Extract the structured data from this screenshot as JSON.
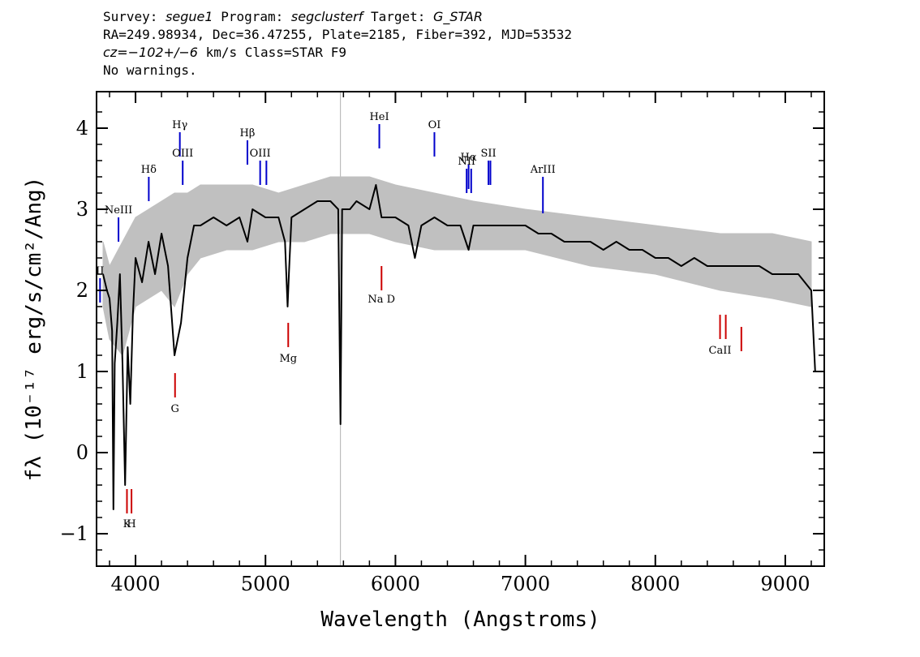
{
  "header": {
    "line1": {
      "survey_label": "Survey:",
      "survey": "segue1",
      "program_label": "Program:",
      "program": "segclusterf",
      "target_label": "Target:",
      "target": "G_STAR"
    },
    "line2": "RA=249.98934, Dec=36.47255, Plate=2185, Fiber=392, MJD=53532",
    "line3": {
      "cz": "cz=−102+/−6",
      "rest": " km/s Class=STAR F9"
    },
    "line4": "No warnings."
  },
  "chart_data": {
    "type": "line",
    "xlabel": "Wavelength (Angstroms)",
    "ylabel": "fλ (10⁻¹⁷ erg/s/cm²/Ang)",
    "xlim": [
      3700,
      9300
    ],
    "ylim": [
      -1.4,
      4.45
    ],
    "x_ticks": [
      4000,
      5000,
      6000,
      7000,
      8000,
      9000
    ],
    "x_tick_labels": [
      "4000",
      "5000",
      "6000",
      "7000",
      "8000",
      "9000"
    ],
    "y_ticks": [
      -1,
      0,
      1,
      2,
      3,
      4
    ],
    "y_tick_labels": [
      "−1",
      "0",
      "1",
      "2",
      "3",
      "4"
    ],
    "grid": false,
    "series": [
      {
        "color": "#000000",
        "x": [
          3750,
          3780,
          3800,
          3820,
          3830,
          3840,
          3860,
          3880,
          3900,
          3920,
          3940,
          3960,
          3980,
          4000,
          4050,
          4100,
          4150,
          4200,
          4250,
          4300,
          4350,
          4400,
          4450,
          4500,
          4600,
          4700,
          4800,
          4861,
          4900,
          5000,
          5100,
          5150,
          5170,
          5180,
          5200,
          5300,
          5400,
          5500,
          5560,
          5577,
          5590,
          5650,
          5700,
          5800,
          5850,
          5893,
          5900,
          6000,
          6100,
          6150,
          6200,
          6300,
          6400,
          6500,
          6563,
          6600,
          6700,
          6800,
          6900,
          7000,
          7100,
          7200,
          7300,
          7400,
          7500,
          7600,
          7700,
          7800,
          7900,
          8000,
          8100,
          8200,
          8300,
          8400,
          8500,
          8600,
          8700,
          8800,
          8900,
          9000,
          9100,
          9150,
          9200,
          9230
        ],
        "y": [
          2.2,
          2.0,
          1.9,
          1.5,
          -0.7,
          1.1,
          1.6,
          2.2,
          1.1,
          -0.4,
          1.3,
          0.6,
          1.7,
          2.4,
          2.1,
          2.6,
          2.2,
          2.7,
          2.3,
          1.2,
          1.6,
          2.4,
          2.8,
          2.8,
          2.9,
          2.8,
          2.9,
          2.6,
          3.0,
          2.9,
          2.9,
          2.6,
          1.8,
          2.2,
          2.9,
          3.0,
          3.1,
          3.1,
          3.0,
          0.35,
          3.0,
          3.0,
          3.1,
          3.0,
          3.3,
          2.9,
          2.9,
          2.9,
          2.8,
          2.4,
          2.8,
          2.9,
          2.8,
          2.8,
          2.5,
          2.8,
          2.8,
          2.8,
          2.8,
          2.8,
          2.7,
          2.7,
          2.6,
          2.6,
          2.6,
          2.5,
          2.6,
          2.5,
          2.5,
          2.4,
          2.4,
          2.3,
          2.4,
          2.3,
          2.3,
          2.3,
          2.3,
          2.3,
          2.2,
          2.2,
          2.2,
          2.1,
          2.0,
          1.0
        ]
      },
      {
        "color": "#c0c0c0",
        "x": [
          3750,
          3800,
          3900,
          4000,
          4100,
          4200,
          4300,
          4400,
          4500,
          4700,
          4900,
          5100,
          5300,
          5500,
          5800,
          6000,
          6300,
          6600,
          7000,
          7500,
          8000,
          8500,
          8900,
          9200
        ],
        "y": [
          2.6,
          2.3,
          2.6,
          2.9,
          3.0,
          3.1,
          3.2,
          3.2,
          3.3,
          3.3,
          3.3,
          3.2,
          3.3,
          3.4,
          3.4,
          3.3,
          3.2,
          3.1,
          3.0,
          2.9,
          2.8,
          2.7,
          2.7,
          2.6
        ],
        "y_lower": [
          1.8,
          1.4,
          1.2,
          1.8,
          1.9,
          2.0,
          1.8,
          2.2,
          2.4,
          2.5,
          2.5,
          2.6,
          2.6,
          2.7,
          2.7,
          2.6,
          2.5,
          2.5,
          2.5,
          2.3,
          2.2,
          2.0,
          1.9,
          1.8
        ]
      }
    ],
    "emission_lines": [
      {
        "label": "NeIII",
        "wavelength": 3869,
        "y_top": 2.9,
        "y_bottom": 2.6,
        "label_y": 2.95
      },
      {
        "label": "II",
        "wavelength": 3727,
        "y_top": 2.15,
        "y_bottom": 1.85,
        "label_y": 2.2
      },
      {
        "label": "Hδ",
        "wavelength": 4102,
        "y_top": 3.4,
        "y_bottom": 3.1,
        "label_y": 3.45
      },
      {
        "label": "Hγ",
        "wavelength": 4341,
        "y_top": 3.95,
        "y_bottom": 3.65,
        "label_y": 4.0
      },
      {
        "label": "OIII",
        "wavelength": 4363,
        "y_top": 3.6,
        "y_bottom": 3.3,
        "label_y": 3.65
      },
      {
        "label": "Hβ",
        "wavelength": 4861,
        "y_top": 3.85,
        "y_bottom": 3.55,
        "label_y": 3.9
      },
      {
        "label": "OIII",
        "wavelength": 4959,
        "y_top": 3.6,
        "y_bottom": 3.3,
        "label_y": 3.65
      },
      {
        "label": "OIII",
        "wavelength": 5007,
        "y_top": 3.6,
        "y_bottom": 3.3,
        "label_y": 3.65
      },
      {
        "label": "HeI",
        "wavelength": 5876,
        "y_top": 4.05,
        "y_bottom": 3.75,
        "label_y": 4.1
      },
      {
        "label": "OI",
        "wavelength": 6300,
        "y_top": 3.95,
        "y_bottom": 3.65,
        "label_y": 4.0
      },
      {
        "label": "NII",
        "wavelength": 6548,
        "y_top": 3.5,
        "y_bottom": 3.2,
        "label_y": 3.55
      },
      {
        "label": "Hα",
        "wavelength": 6563,
        "y_top": 3.55,
        "y_bottom": 3.25,
        "label_y": 3.6
      },
      {
        "label": "NII",
        "wavelength": 6583,
        "y_top": 3.5,
        "y_bottom": 3.2,
        "label_y": 3.55
      },
      {
        "label": "SII",
        "wavelength": 6716,
        "y_top": 3.6,
        "y_bottom": 3.3,
        "label_y": 3.65
      },
      {
        "label": "SII",
        "wavelength": 6731,
        "y_top": 3.6,
        "y_bottom": 3.3,
        "label_y": 3.65
      },
      {
        "label": "ArIII",
        "wavelength": 7135,
        "y_top": 3.4,
        "y_bottom": 2.95,
        "label_y": 3.45
      }
    ],
    "absorption_lines": [
      {
        "label": "K",
        "wavelength": 3934,
        "y_top": -0.45,
        "y_bottom": -0.75,
        "label_y": -0.92
      },
      {
        "label": "H",
        "wavelength": 3969,
        "y_top": -0.45,
        "y_bottom": -0.75,
        "label_y": -0.92
      },
      {
        "label": "G",
        "wavelength": 4304,
        "y_top": 0.98,
        "y_bottom": 0.68,
        "label_y": 0.5
      },
      {
        "label": "Mg",
        "wavelength": 5175,
        "y_top": 1.6,
        "y_bottom": 1.3,
        "label_y": 1.12
      },
      {
        "label": "Na D",
        "wavelength": 5893,
        "y_top": 2.3,
        "y_bottom": 2.0,
        "label_y": 1.85
      },
      {
        "label": "CaII",
        "wavelength": 8498,
        "y_top": 1.7,
        "y_bottom": 1.4,
        "label_y": 1.22
      },
      {
        "label": "CaII",
        "wavelength": 8542,
        "y_top": 1.7,
        "y_bottom": 1.4,
        "label_y": 1.22
      },
      {
        "label": "CaII",
        "wavelength": 8662,
        "y_top": 1.55,
        "y_bottom": 1.25,
        "label_y": 1.22
      }
    ],
    "sky_line_wavelength": 5577,
    "colors": {
      "spectrum": "#000000",
      "error": "#c0c0c0",
      "emission": "#0000cc",
      "absorption": "#cc0000",
      "sky": "#b0b0b0"
    }
  }
}
